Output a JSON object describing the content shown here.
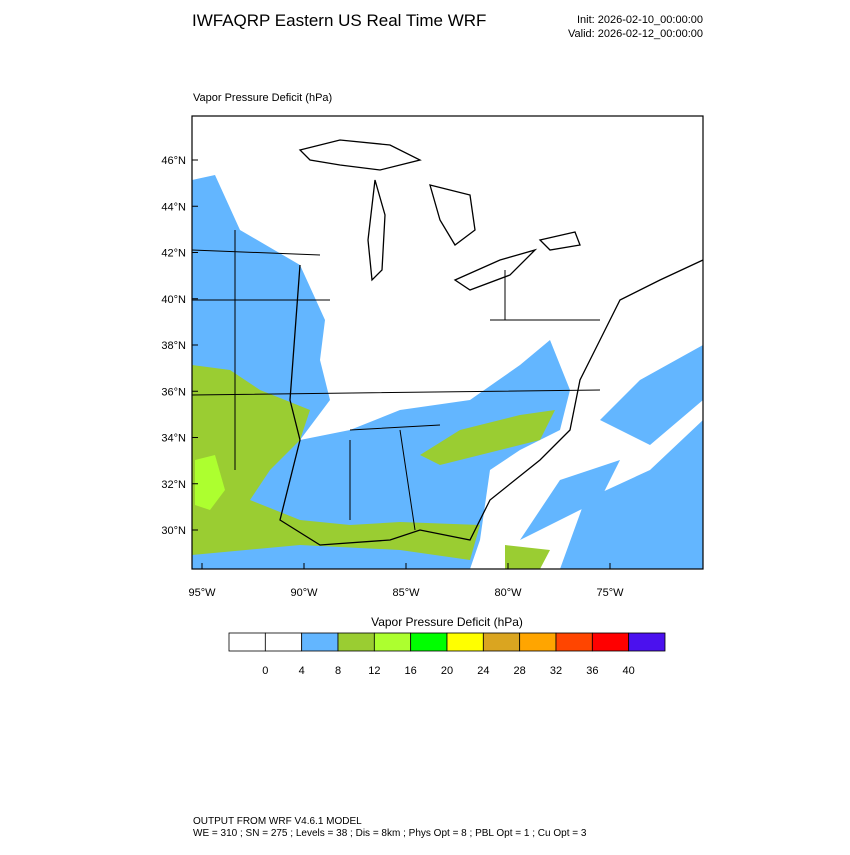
{
  "header": {
    "title": "IWFAQRP Eastern US Real Time WRF",
    "init": "Init: 2026-02-10_00:00:00",
    "valid": "Valid: 2026-02-12_00:00:00"
  },
  "map": {
    "subtitle": "Vapor Pressure Deficit   (hPa)",
    "lat_labels": [
      "46°N",
      "44°N",
      "42°N",
      "40°N",
      "38°N",
      "36°N",
      "34°N",
      "32°N",
      "30°N"
    ],
    "lon_labels": [
      "95°W",
      "90°W",
      "85°W",
      "80°W",
      "75°W"
    ]
  },
  "colorbar": {
    "title": "Vapor Pressure Deficit  (hPa)",
    "colors": [
      "#ffffff",
      "#ffffff",
      "#63b6ff",
      "#9acd32",
      "#adff2f",
      "#00ff00",
      "#ffff00",
      "#daa520",
      "#ffa500",
      "#ff4500",
      "#ff0000",
      "#4b11ee"
    ],
    "labels": [
      "0",
      "4",
      "8",
      "12",
      "16",
      "20",
      "24",
      "28",
      "32",
      "36",
      "40"
    ]
  },
  "footer": {
    "line1": "OUTPUT FROM WRF V4.6.1 MODEL",
    "line2": "WE = 310 ; SN = 275 ; Levels = 38 ; Dis = 8km ; Phys Opt = 8 ; PBL Opt = 1 ; Cu Opt = 3"
  }
}
